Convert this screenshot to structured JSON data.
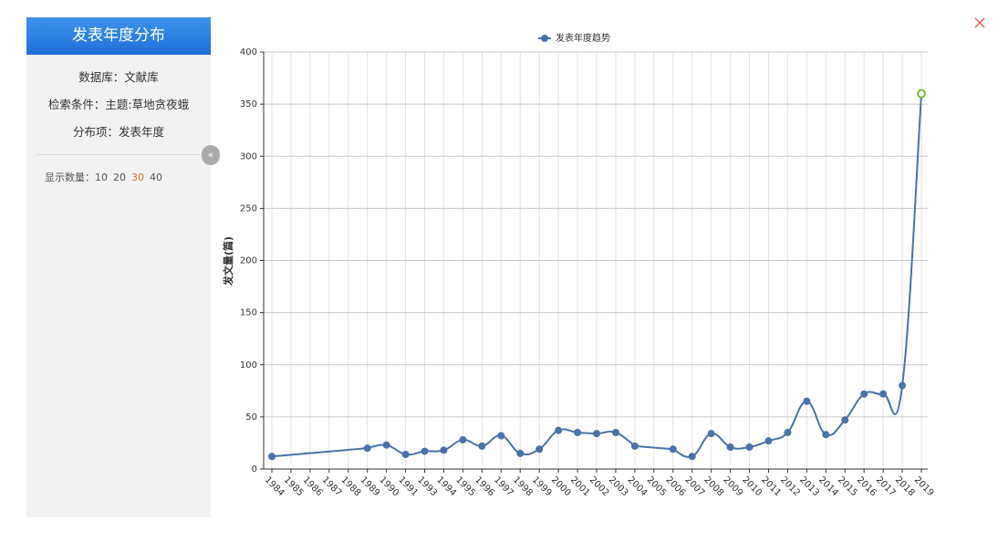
{
  "sidebar": {
    "title": "发表年度分布",
    "fields": [
      {
        "label": "数据库：",
        "value": "文献库"
      },
      {
        "label": "检索条件：",
        "value": "主题:草地贪夜蛾"
      },
      {
        "label": "分布项：",
        "value": "发表年度"
      }
    ],
    "count_label": "显示数量：",
    "count_options": [
      10,
      20,
      30,
      40
    ],
    "count_selected": 2
  },
  "chart_data": {
    "type": "line",
    "y_label": "发文量(篇)",
    "categories": [
      "1984",
      "1985",
      "1986",
      "1987",
      "1988",
      "1989",
      "1990",
      "1991",
      "1993",
      "1994",
      "1995",
      "1996",
      "1997",
      "1998",
      "1999",
      "2000",
      "2001",
      "2002",
      "2003",
      "2004",
      "2005",
      "2006",
      "2007",
      "2008",
      "2009",
      "2010",
      "2011",
      "2012",
      "2013",
      "2014",
      "2015",
      "2016",
      "2017",
      "2018",
      "2019"
    ],
    "series": [
      {
        "name": "发表年度趋势",
        "color": "#4a72a8",
        "values": [
          12,
          null,
          null,
          null,
          null,
          20,
          23,
          14,
          17,
          18,
          28,
          22,
          32,
          15,
          19,
          37,
          35,
          34,
          35,
          22,
          null,
          19,
          12,
          34,
          21,
          21,
          27,
          35,
          65,
          33,
          47,
          72,
          72,
          80,
          360
        ]
      }
    ],
    "ylim": [
      0,
      400
    ],
    "yticks": [
      0,
      50,
      100,
      150,
      200,
      250,
      300,
      350,
      400
    ],
    "grid": true,
    "connect_nulls": true,
    "highlight": {
      "index": 34,
      "color": "#7cb342"
    }
  }
}
